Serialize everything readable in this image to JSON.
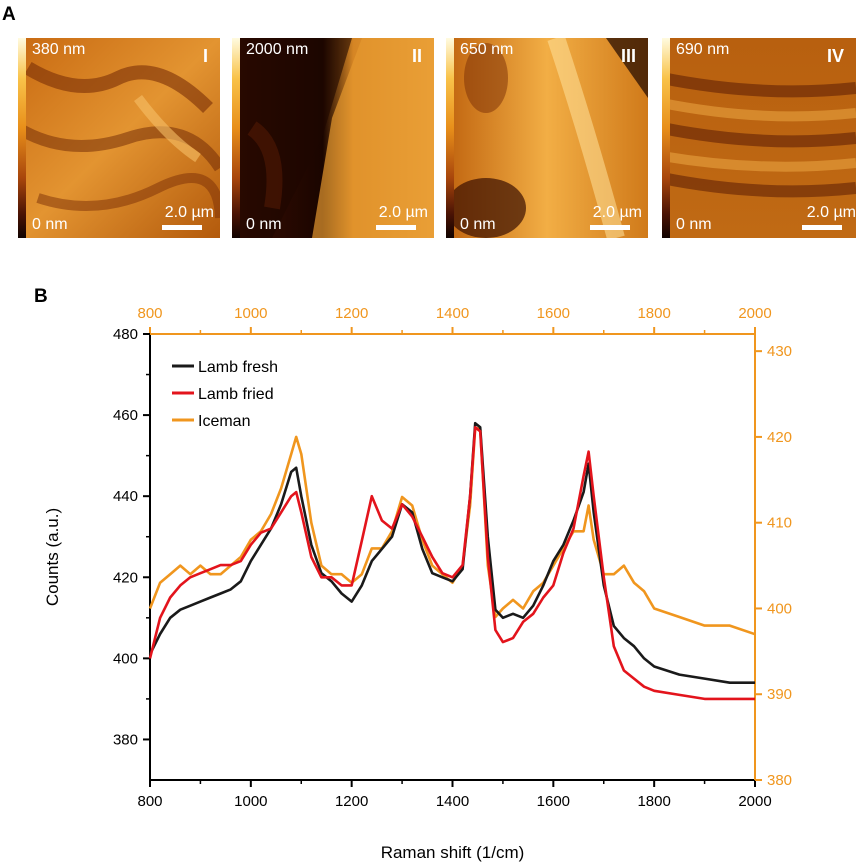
{
  "panel_labels": {
    "a": "A",
    "b": "B"
  },
  "afm_images": [
    {
      "max_label": "380 nm",
      "min_label": "0 nm",
      "roman": "I",
      "scale_label": "2.0 µm"
    },
    {
      "max_label": "2000 nm",
      "min_label": "0 nm",
      "roman": "II",
      "scale_label": "2.0 µm"
    },
    {
      "max_label": "650 nm",
      "min_label": "0 nm",
      "roman": "III",
      "scale_label": "2.0 µm"
    },
    {
      "max_label": "690 nm",
      "min_label": "0 nm",
      "roman": "IV",
      "scale_label": "2.0 µm"
    }
  ],
  "colors": {
    "lamb_fresh": "#1a1a1a",
    "lamb_fried": "#e3141c",
    "iceman": "#f0961e",
    "right_axis": "#f0961e"
  },
  "chart_data": {
    "type": "line",
    "xlabel": "Raman shift (1/cm)",
    "ylabel": "Counts (a.u.)",
    "xlim": [
      800,
      2000
    ],
    "ylim": [
      370,
      480
    ],
    "y2lim": [
      380,
      432
    ],
    "x_ticks": [
      800,
      1000,
      1200,
      1400,
      1600,
      1800,
      2000
    ],
    "y_ticks": [
      380,
      400,
      420,
      440,
      460,
      480
    ],
    "y2_ticks": [
      380,
      390,
      400,
      410,
      420,
      430
    ],
    "legend_position": "top-left",
    "series": [
      {
        "name": "Lamb fresh",
        "axis": "left",
        "x": [
          800,
          820,
          840,
          860,
          880,
          900,
          920,
          940,
          960,
          980,
          1000,
          1020,
          1040,
          1060,
          1080,
          1090,
          1100,
          1120,
          1140,
          1160,
          1180,
          1200,
          1220,
          1240,
          1260,
          1280,
          1300,
          1320,
          1340,
          1360,
          1380,
          1400,
          1420,
          1435,
          1445,
          1455,
          1470,
          1485,
          1500,
          1520,
          1540,
          1560,
          1580,
          1600,
          1620,
          1640,
          1660,
          1670,
          1680,
          1700,
          1720,
          1740,
          1760,
          1780,
          1800,
          1850,
          1900,
          1950,
          2000
        ],
        "values": [
          401,
          406,
          410,
          412,
          413,
          414,
          415,
          416,
          417,
          419,
          424,
          428,
          432,
          438,
          446,
          447,
          440,
          428,
          421,
          419,
          416,
          414,
          418,
          424,
          427,
          430,
          438,
          436,
          427,
          421,
          420,
          419,
          422,
          440,
          458,
          457,
          430,
          412,
          410,
          411,
          410,
          413,
          418,
          424,
          428,
          434,
          441,
          448,
          436,
          418,
          408,
          405,
          403,
          400,
          398,
          396,
          395,
          394,
          394
        ]
      },
      {
        "name": "Lamb fried",
        "axis": "left",
        "x": [
          800,
          820,
          840,
          860,
          880,
          900,
          920,
          940,
          960,
          980,
          1000,
          1020,
          1040,
          1060,
          1080,
          1090,
          1100,
          1120,
          1140,
          1160,
          1180,
          1200,
          1220,
          1240,
          1260,
          1280,
          1300,
          1320,
          1340,
          1360,
          1380,
          1400,
          1420,
          1435,
          1445,
          1455,
          1470,
          1485,
          1500,
          1520,
          1540,
          1560,
          1580,
          1600,
          1620,
          1640,
          1660,
          1670,
          1680,
          1700,
          1720,
          1740,
          1760,
          1780,
          1800,
          1850,
          1900,
          1950,
          2000
        ],
        "values": [
          400,
          410,
          415,
          418,
          420,
          421,
          422,
          423,
          423,
          424,
          428,
          431,
          432,
          436,
          440,
          441,
          436,
          425,
          420,
          420,
          418,
          418,
          429,
          440,
          434,
          432,
          438,
          435,
          430,
          425,
          421,
          420,
          423,
          440,
          457,
          456,
          425,
          407,
          404,
          405,
          409,
          411,
          415,
          418,
          426,
          432,
          445,
          451,
          440,
          420,
          403,
          397,
          395,
          393,
          392,
          391,
          390,
          390,
          390
        ]
      },
      {
        "name": "Iceman",
        "axis": "right",
        "x": [
          800,
          820,
          840,
          860,
          880,
          900,
          920,
          940,
          960,
          980,
          1000,
          1020,
          1040,
          1060,
          1080,
          1090,
          1100,
          1120,
          1140,
          1160,
          1180,
          1200,
          1220,
          1240,
          1260,
          1280,
          1300,
          1320,
          1340,
          1360,
          1380,
          1400,
          1420,
          1435,
          1445,
          1455,
          1470,
          1485,
          1500,
          1520,
          1540,
          1560,
          1580,
          1600,
          1620,
          1640,
          1660,
          1670,
          1680,
          1700,
          1720,
          1740,
          1760,
          1780,
          1800,
          1850,
          1900,
          1950,
          2000
        ],
        "values": [
          400,
          403,
          404,
          405,
          404,
          405,
          404,
          404,
          405,
          406,
          408,
          409,
          411,
          414,
          418,
          420,
          418,
          410,
          405,
          404,
          404,
          403,
          404,
          407,
          407,
          409,
          413,
          412,
          408,
          405,
          404,
          403,
          405,
          412,
          421,
          421,
          405,
          399,
          400,
          401,
          400,
          402,
          403,
          405,
          407,
          409,
          409,
          412,
          408,
          404,
          404,
          405,
          403,
          402,
          400,
          399,
          398,
          398,
          397
        ]
      }
    ]
  }
}
